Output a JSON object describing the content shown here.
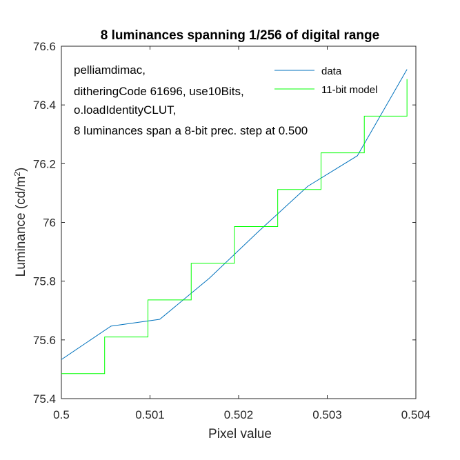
{
  "chart_data": {
    "type": "line",
    "title": "8 luminances spanning 1/256 of digital range",
    "xlabel": "Pixel value",
    "ylabel_main": "Luminance (cd/m",
    "ylabel_sup": "2",
    "ylabel_end": ")",
    "xlim": [
      0.5,
      0.504
    ],
    "ylim": [
      75.4,
      76.6
    ],
    "xticks": [
      0.5,
      0.501,
      0.502,
      0.503,
      0.504
    ],
    "xtick_labels": [
      "0.5",
      "0.501",
      "0.502",
      "0.503",
      "0.504"
    ],
    "yticks": [
      75.4,
      75.6,
      75.8,
      76.0,
      76.2,
      76.4,
      76.6
    ],
    "ytick_labels": [
      "75.4",
      "75.6",
      "75.8",
      "76",
      "76.2",
      "76.4",
      "76.6"
    ],
    "grid": false,
    "legend_position": "top-right",
    "annotation_lines": [
      "pelliamdimac,",
      "ditheringCode 61696, use10Bits,",
      "o.loadIdentityCLUT,",
      "8 luminances span a 8-bit prec. step at 0.500"
    ],
    "series": [
      {
        "name": "data",
        "color": "#0072bd",
        "style": "line",
        "x": [
          0.5,
          0.50056,
          0.50111,
          0.50167,
          0.50222,
          0.50278,
          0.50334,
          0.5039
        ],
        "y": [
          75.533,
          75.647,
          75.67,
          75.81,
          75.968,
          76.123,
          76.227,
          76.521
        ]
      },
      {
        "name": "11-bit model",
        "color": "#00ff00",
        "style": "step",
        "x": [
          0.5,
          0.500488,
          0.500977,
          0.501465,
          0.501953,
          0.502441,
          0.50293,
          0.503418,
          0.5039
        ],
        "y": [
          75.485,
          75.61,
          75.736,
          75.861,
          75.986,
          76.112,
          76.237,
          76.362,
          76.488
        ]
      }
    ]
  }
}
